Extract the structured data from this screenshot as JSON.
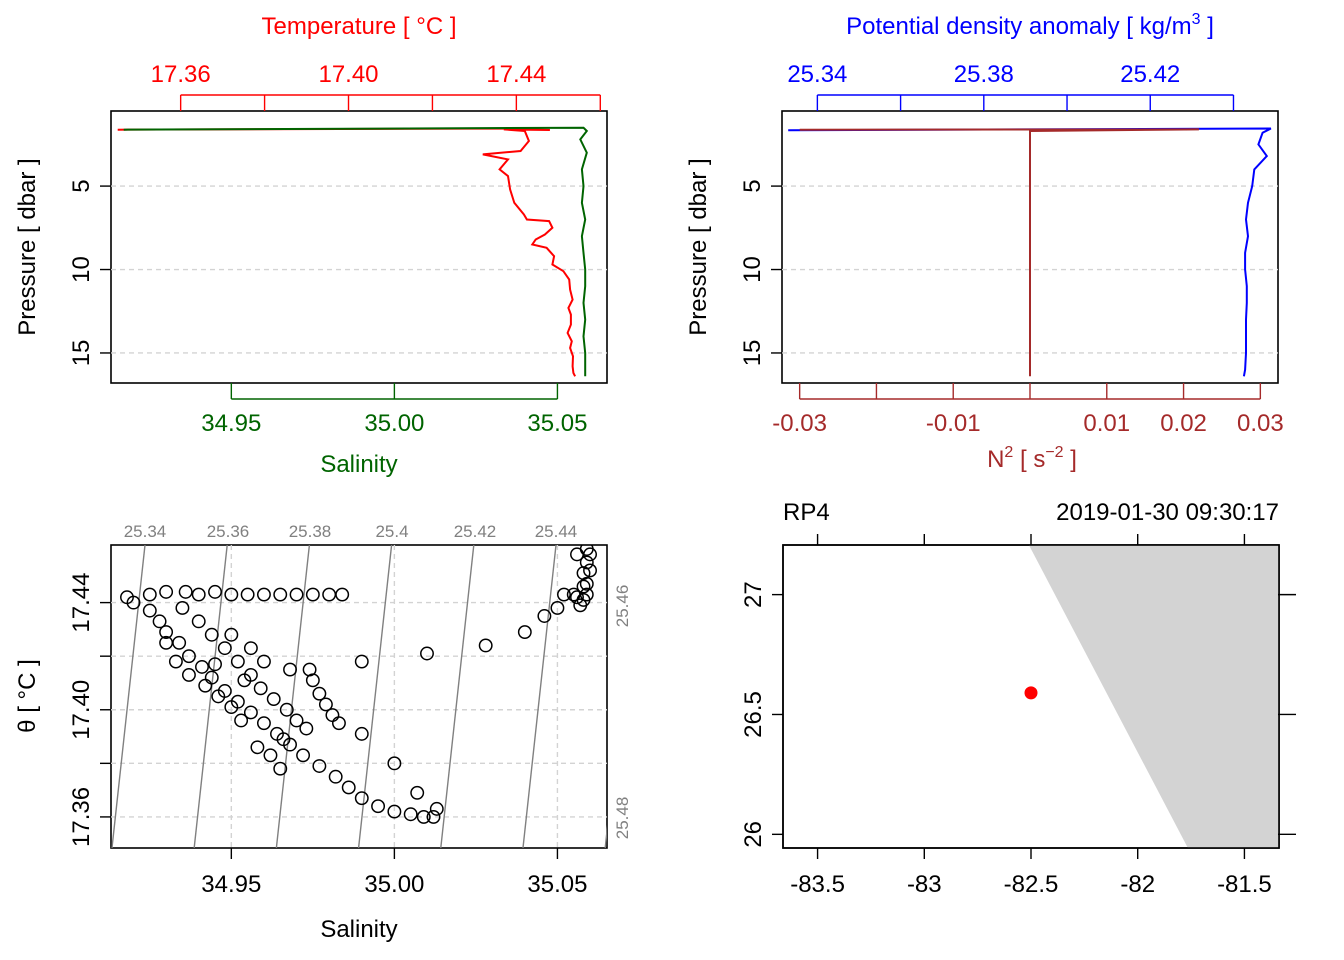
{
  "colors": {
    "temperature": "#ff0000",
    "salinity": "#006400",
    "density": "#0000ff",
    "n2": "#a52a2a",
    "isopycnal": "#808080",
    "grid": "#d3d3d3",
    "land": "#d3d3d3",
    "station": "#ff0000"
  },
  "panels": {
    "tl": {
      "top_label": "Temperature [ °C ]",
      "bottom_label": "Salinity",
      "y_label": "Pressure [ dbar ]"
    },
    "tr": {
      "top_label": "Potential density anomaly [ kg/m",
      "top_label_sup": "3",
      "top_label_end": " ]",
      "bottom_label_base": "N",
      "bottom_label_sup": "2",
      "bottom_label_mid": " [ s",
      "bottom_label_sup2": "−2",
      "bottom_label_end": " ]",
      "y_label": "Pressure [ dbar ]"
    },
    "bl": {
      "x_label": "Salinity",
      "y_label": "θ [ °C ]"
    },
    "br": {
      "station": "RP4",
      "time": "2019-01-30 09:30:17"
    }
  },
  "chart_data": [
    {
      "type": "line",
      "name": "temperature-salinity-profile",
      "y_axis": {
        "label": "Pressure [ dbar ]",
        "range": [
          16.8,
          0.5
        ],
        "ticks": [
          "5",
          "10",
          "15"
        ],
        "tick_values": [
          5,
          10,
          15
        ],
        "inverted": true
      },
      "top_axis": {
        "label": "Temperature [ °C ]",
        "range": [
          17.3434,
          17.4616
        ],
        "ticks": [
          "17.36",
          "17.40",
          "17.44"
        ],
        "tick_values": [
          17.36,
          17.4,
          17.44
        ],
        "minor_ticks": [
          17.38,
          17.42,
          17.46
        ]
      },
      "bottom_axis": {
        "label": "Salinity",
        "range": [
          34.9131,
          35.0652
        ],
        "ticks": [
          "34.95",
          "35.00",
          "35.05"
        ],
        "tick_values": [
          34.95,
          35.0,
          35.05
        ]
      },
      "grid": "horizontal dashed at 5, 10, 15",
      "series": [
        {
          "name": "Temperature",
          "axis": "top",
          "points": [
            [
              17.345,
              1.62
            ],
            [
              17.44,
              1.55
            ],
            [
              17.448,
              1.64
            ],
            [
              17.437,
              1.6
            ],
            [
              17.442,
              1.7
            ],
            [
              17.443,
              2.3
            ],
            [
              17.441,
              2.9
            ],
            [
              17.432,
              3.1
            ],
            [
              17.438,
              3.4
            ],
            [
              17.436,
              4.0
            ],
            [
              17.438,
              4.4
            ],
            [
              17.4385,
              5.2
            ],
            [
              17.4395,
              6.0
            ],
            [
              17.4418,
              6.7
            ],
            [
              17.4425,
              7.0
            ],
            [
              17.4478,
              7.1
            ],
            [
              17.4486,
              7.5
            ],
            [
              17.4468,
              7.9
            ],
            [
              17.4446,
              8.2
            ],
            [
              17.4438,
              8.5
            ],
            [
              17.4472,
              8.7
            ],
            [
              17.449,
              9.2
            ],
            [
              17.4486,
              9.7
            ],
            [
              17.4512,
              10.1
            ],
            [
              17.4526,
              10.6
            ],
            [
              17.4528,
              11.2
            ],
            [
              17.4534,
              11.8
            ],
            [
              17.4524,
              12.3
            ],
            [
              17.453,
              12.7
            ],
            [
              17.453,
              13.3
            ],
            [
              17.4522,
              13.8
            ],
            [
              17.4532,
              14.3
            ],
            [
              17.4528,
              14.7
            ],
            [
              17.4535,
              15.2
            ],
            [
              17.4534,
              15.8
            ],
            [
              17.4536,
              16.2
            ],
            [
              17.454,
              16.4
            ]
          ]
        },
        {
          "name": "Salinity",
          "axis": "bottom",
          "points": [
            [
              34.917,
              1.62
            ],
            [
              35.058,
              1.5
            ],
            [
              35.059,
              1.7
            ],
            [
              35.057,
              2.2
            ],
            [
              35.059,
              3.0
            ],
            [
              35.0575,
              4.0
            ],
            [
              35.058,
              5.0
            ],
            [
              35.0575,
              6.0
            ],
            [
              35.0585,
              7.0
            ],
            [
              35.0575,
              8.0
            ],
            [
              35.058,
              9.0
            ],
            [
              35.0585,
              10.0
            ],
            [
              35.0585,
              11.0
            ],
            [
              35.058,
              12.0
            ],
            [
              35.0585,
              13.0
            ],
            [
              35.058,
              14.0
            ],
            [
              35.0585,
              15.0
            ],
            [
              35.0585,
              16.0
            ],
            [
              35.0585,
              16.4
            ]
          ]
        }
      ]
    },
    {
      "type": "line",
      "name": "density-n2-profile",
      "y_axis": {
        "label": "Pressure [ dbar ]",
        "range": [
          16.8,
          0.5
        ],
        "ticks": [
          "5",
          "10",
          "15"
        ],
        "tick_values": [
          5,
          10,
          15
        ],
        "inverted": true
      },
      "top_axis": {
        "label": "Potential density anomaly [ kg/m3 ]",
        "range": [
          25.3315,
          25.4507
        ],
        "ticks": [
          "25.34",
          "25.38",
          "25.42"
        ],
        "tick_values": [
          25.34,
          25.38,
          25.42
        ],
        "minor_ticks": [
          25.36,
          25.4,
          25.44
        ]
      },
      "bottom_axis": {
        "label": "N2 [ s-2 ]",
        "range": [
          -0.0323,
          0.0323
        ],
        "ticks": [
          "-0.03",
          "-0.01",
          "0.01",
          "0.02",
          "0.03"
        ],
        "tick_values": [
          -0.03,
          -0.01,
          0.01,
          0.02,
          0.03
        ],
        "minor_ticks": [
          -0.02,
          0.0
        ]
      },
      "grid": "horizontal dashed at 5, 10, 15",
      "series": [
        {
          "name": "Potential density anomaly",
          "axis": "top",
          "points": [
            [
              25.333,
              1.65
            ],
            [
              25.449,
              1.55
            ],
            [
              25.447,
              1.8
            ],
            [
              25.446,
              2.5
            ],
            [
              25.448,
              3.2
            ],
            [
              25.445,
              4.0
            ],
            [
              25.4445,
              5.0
            ],
            [
              25.4435,
              6.0
            ],
            [
              25.443,
              7.0
            ],
            [
              25.4435,
              8.0
            ],
            [
              25.4428,
              9.0
            ],
            [
              25.4428,
              10.0
            ],
            [
              25.4432,
              11.0
            ],
            [
              25.4432,
              12.0
            ],
            [
              25.443,
              13.0
            ],
            [
              25.443,
              14.0
            ],
            [
              25.443,
              15.0
            ],
            [
              25.4428,
              16.0
            ],
            [
              25.4425,
              16.4
            ]
          ]
        },
        {
          "name": "N2",
          "axis": "bottom",
          "points": [
            [
              -0.03,
              1.62
            ],
            [
              0.022,
              1.6
            ],
            [
              0.0,
              1.7
            ],
            [
              0.0,
              6.4
            ],
            [
              0.0,
              16.4
            ]
          ]
        }
      ]
    },
    {
      "type": "scatter",
      "name": "ts-diagram",
      "x_axis": {
        "label": "Salinity",
        "range": [
          34.9131,
          35.0652
        ],
        "ticks": [
          "34.95",
          "35.00",
          "35.05"
        ],
        "tick_values": [
          34.95,
          35.0,
          35.05
        ]
      },
      "y_axis": {
        "label": "θ [ °C ]",
        "range": [
          17.3484,
          17.4615
        ],
        "ticks": [
          "17.36",
          "17.40",
          "17.44"
        ],
        "tick_values": [
          17.36,
          17.4,
          17.44
        ],
        "minor_ticks": [
          17.38,
          17.42
        ]
      },
      "isopycnal_labels": [
        "25.34",
        "25.36",
        "25.38",
        "25.4",
        "25.42",
        "25.44",
        "25.46",
        "25.48"
      ],
      "grid": "dashed at salinity ticks and θ minor ticks",
      "points": [
        [
          34.918,
          17.442
        ],
        [
          34.925,
          17.443
        ],
        [
          34.93,
          17.444
        ],
        [
          34.936,
          17.444
        ],
        [
          34.94,
          17.443
        ],
        [
          34.945,
          17.444
        ],
        [
          34.95,
          17.443
        ],
        [
          34.955,
          17.443
        ],
        [
          34.96,
          17.443
        ],
        [
          34.965,
          17.443
        ],
        [
          34.97,
          17.443
        ],
        [
          34.975,
          17.443
        ],
        [
          34.98,
          17.443
        ],
        [
          34.984,
          17.443
        ],
        [
          34.92,
          17.44
        ],
        [
          34.925,
          17.437
        ],
        [
          34.928,
          17.433
        ],
        [
          34.93,
          17.429
        ],
        [
          34.934,
          17.425
        ],
        [
          34.937,
          17.42
        ],
        [
          34.941,
          17.416
        ],
        [
          34.944,
          17.412
        ],
        [
          34.948,
          17.407
        ],
        [
          34.952,
          17.403
        ],
        [
          34.956,
          17.399
        ],
        [
          34.96,
          17.395
        ],
        [
          34.964,
          17.391
        ],
        [
          34.968,
          17.387
        ],
        [
          34.972,
          17.383
        ],
        [
          34.977,
          17.379
        ],
        [
          34.982,
          17.375
        ],
        [
          34.986,
          17.371
        ],
        [
          34.99,
          17.367
        ],
        [
          34.995,
          17.364
        ],
        [
          35.0,
          17.362
        ],
        [
          35.005,
          17.361
        ],
        [
          35.009,
          17.36
        ],
        [
          35.012,
          17.36
        ],
        [
          34.935,
          17.438
        ],
        [
          34.94,
          17.433
        ],
        [
          34.944,
          17.428
        ],
        [
          34.948,
          17.423
        ],
        [
          34.952,
          17.418
        ],
        [
          34.956,
          17.413
        ],
        [
          34.959,
          17.408
        ],
        [
          34.963,
          17.404
        ],
        [
          34.967,
          17.4
        ],
        [
          34.97,
          17.396
        ],
        [
          34.973,
          17.393
        ],
        [
          34.966,
          17.389
        ],
        [
          34.962,
          17.383
        ],
        [
          34.965,
          17.378
        ],
        [
          34.93,
          17.425
        ],
        [
          34.933,
          17.418
        ],
        [
          34.937,
          17.413
        ],
        [
          34.942,
          17.409
        ],
        [
          34.946,
          17.405
        ],
        [
          34.95,
          17.401
        ],
        [
          34.953,
          17.396
        ],
        [
          34.958,
          17.386
        ],
        [
          34.974,
          17.415
        ],
        [
          34.975,
          17.411
        ],
        [
          34.977,
          17.406
        ],
        [
          34.979,
          17.402
        ],
        [
          34.981,
          17.398
        ],
        [
          34.983,
          17.395
        ],
        [
          34.99,
          17.418
        ],
        [
          34.968,
          17.415
        ],
        [
          34.956,
          17.423
        ],
        [
          34.95,
          17.428
        ],
        [
          34.96,
          17.418
        ],
        [
          34.954,
          17.411
        ],
        [
          34.945,
          17.417
        ],
        [
          35.01,
          17.421
        ],
        [
          35.028,
          17.424
        ],
        [
          35.04,
          17.429
        ],
        [
          35.046,
          17.435
        ],
        [
          35.05,
          17.438
        ],
        [
          34.99,
          17.391
        ],
        [
          35.0,
          17.38
        ],
        [
          35.007,
          17.369
        ],
        [
          35.013,
          17.363
        ],
        [
          35.052,
          17.443
        ],
        [
          35.055,
          17.443
        ],
        [
          35.056,
          17.442
        ],
        [
          35.058,
          17.441
        ],
        [
          35.059,
          17.443
        ],
        [
          35.059,
          17.447
        ],
        [
          35.058,
          17.451
        ],
        [
          35.059,
          17.455
        ],
        [
          35.06,
          17.458
        ],
        [
          35.059,
          17.46
        ],
        [
          35.056,
          17.458
        ],
        [
          35.057,
          17.439
        ],
        [
          35.058,
          17.446
        ],
        [
          35.06,
          17.452
        ]
      ]
    },
    {
      "type": "map",
      "name": "station-map",
      "x_axis": {
        "range": [
          -83.662,
          -81.338
        ],
        "ticks": [
          "-83.5",
          "-83",
          "-82.5",
          "-82",
          "-81.5"
        ],
        "tick_values": [
          -83.5,
          -83.0,
          -82.5,
          -82.0,
          -81.5
        ]
      },
      "y_axis": {
        "range": [
          25.943,
          27.207
        ],
        "ticks": [
          "26",
          "26.5",
          "27"
        ],
        "tick_values": [
          26.0,
          26.5,
          27.0
        ]
      },
      "land_polygon": [
        [
          -82.51,
          27.207
        ],
        [
          -81.338,
          27.207
        ],
        [
          -81.338,
          25.943
        ],
        [
          -81.765,
          25.943
        ]
      ],
      "station": {
        "lon": -82.5,
        "lat": 26.59
      }
    }
  ]
}
